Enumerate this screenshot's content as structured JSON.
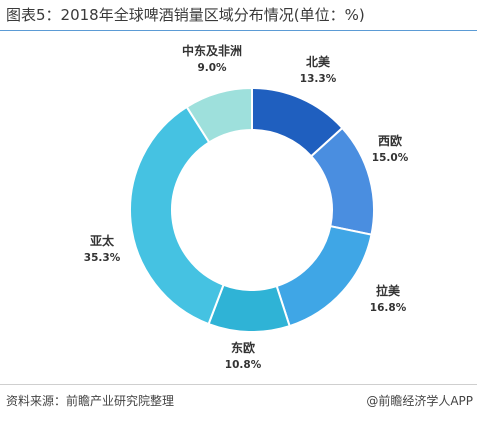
{
  "header": {
    "title": "图表5：2018年全球啤酒销量区域分布情况(单位：%)"
  },
  "footer": {
    "source": "资料来源：前瞻产业研究院整理",
    "brand_prefix": "@",
    "brand": "前瞻经济学人APP"
  },
  "chart_data": {
    "type": "pie",
    "donut": true,
    "title": "图表5：2018年全球啤酒销量区域分布情况(单位：%)",
    "unit": "%",
    "slices": [
      {
        "name": "北美",
        "value": 13.3,
        "label": "13.3%",
        "color": "#1f5fbf"
      },
      {
        "name": "西欧",
        "value": 15.0,
        "label": "15.0%",
        "color": "#4a8ee0"
      },
      {
        "name": "拉美",
        "value": 16.8,
        "label": "16.8%",
        "color": "#3fa6e6"
      },
      {
        "name": "东欧",
        "value": 10.8,
        "label": "10.8%",
        "color": "#2fb3d6"
      },
      {
        "name": "亚太",
        "value": 35.3,
        "label": "35.3%",
        "color": "#45c2e2"
      },
      {
        "name": "中东及非洲",
        "value": 9.0,
        "label": "9.0%",
        "color": "#9ee0dc"
      }
    ]
  }
}
